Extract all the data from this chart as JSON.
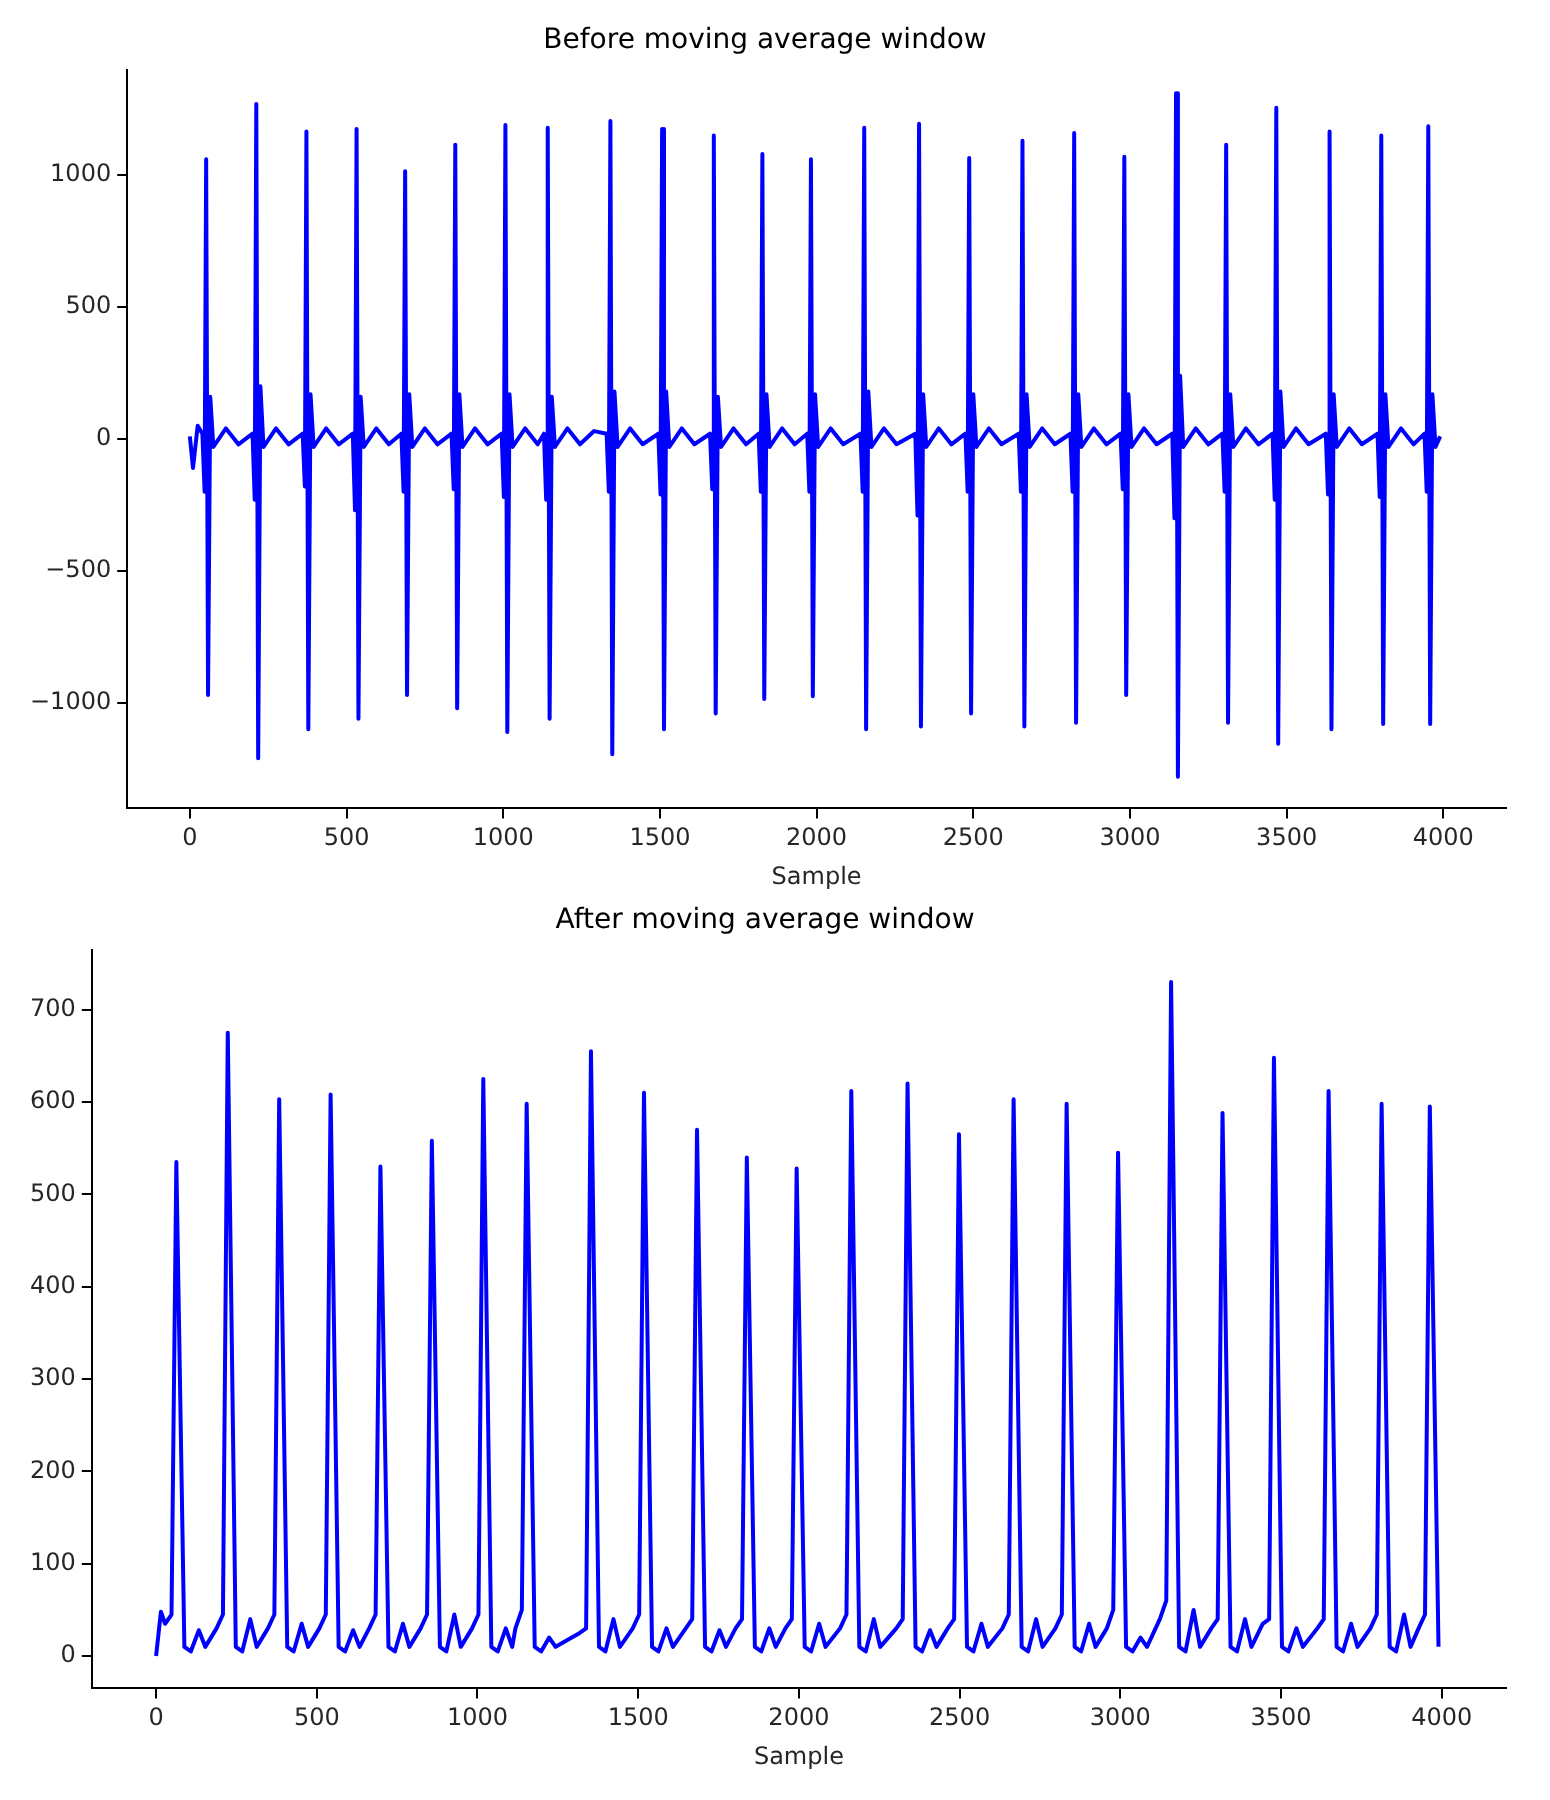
{
  "chart_data": [
    {
      "type": "line",
      "title": "Before moving average window",
      "xlabel": "Sample",
      "xlim": [
        -200,
        4200
      ],
      "xticks": [
        0,
        500,
        1000,
        1500,
        2000,
        2500,
        3000,
        3500,
        4000
      ],
      "ylim": [
        -1400,
        1400
      ],
      "yticks": [
        {
          "value": -1000,
          "label": "−1000"
        },
        {
          "value": -500,
          "label": "−500"
        },
        0,
        500,
        1000
      ],
      "grid": false,
      "legend": false,
      "marker": "none",
      "series": [
        {
          "color": "#0000ff",
          "x": [
            0,
            10,
            25,
            40,
            47,
            52,
            58,
            65,
            75,
            115,
            155,
            200,
            207,
            212,
            218,
            225,
            235,
            275,
            315,
            360,
            367,
            372,
            378,
            385,
            395,
            435,
            475,
            520,
            527,
            532,
            538,
            545,
            555,
            595,
            635,
            675,
            682,
            687,
            693,
            700,
            710,
            750,
            790,
            835,
            842,
            847,
            853,
            860,
            870,
            910,
            950,
            995,
            1002,
            1007,
            1013,
            1020,
            1030,
            1070,
            1110,
            1130,
            1137,
            1142,
            1148,
            1155,
            1165,
            1205,
            1245,
            1290,
            1330,
            1337,
            1342,
            1348,
            1355,
            1365,
            1405,
            1445,
            1495,
            1502,
            1507,
            1513,
            1520,
            1530,
            1570,
            1610,
            1660,
            1667,
            1672,
            1678,
            1685,
            1695,
            1735,
            1775,
            1815,
            1822,
            1827,
            1833,
            1840,
            1850,
            1890,
            1930,
            1970,
            1977,
            1982,
            1988,
            1995,
            2005,
            2045,
            2085,
            2140,
            2147,
            2152,
            2158,
            2165,
            2175,
            2215,
            2255,
            2315,
            2322,
            2327,
            2333,
            2340,
            2350,
            2390,
            2430,
            2475,
            2482,
            2487,
            2493,
            2500,
            2510,
            2550,
            2590,
            2645,
            2652,
            2657,
            2663,
            2670,
            2680,
            2720,
            2760,
            2810,
            2817,
            2822,
            2828,
            2835,
            2845,
            2885,
            2925,
            2970,
            2977,
            2982,
            2988,
            2995,
            3005,
            3045,
            3085,
            3135,
            3142,
            3147,
            3153,
            3160,
            3170,
            3210,
            3250,
            3295,
            3302,
            3307,
            3313,
            3320,
            3330,
            3370,
            3410,
            3455,
            3462,
            3467,
            3473,
            3480,
            3490,
            3530,
            3570,
            3625,
            3632,
            3637,
            3643,
            3650,
            3660,
            3700,
            3740,
            3790,
            3797,
            3802,
            3808,
            3815,
            3825,
            3865,
            3905,
            3940,
            3947,
            3952,
            3958,
            3965,
            3975,
            3990
          ],
          "values": [
            10,
            -110,
            50,
            20,
            -200,
            1060,
            -970,
            160,
            -30,
            40,
            -20,
            20,
            -230,
            1270,
            -1210,
            200,
            -30,
            40,
            -20,
            20,
            -180,
            1165,
            -1100,
            170,
            -30,
            40,
            -20,
            20,
            -270,
            1175,
            -1060,
            160,
            -30,
            40,
            -20,
            20,
            -200,
            1015,
            -970,
            170,
            -30,
            40,
            -20,
            20,
            -190,
            1115,
            -1020,
            170,
            -30,
            40,
            -20,
            20,
            -220,
            1190,
            -1110,
            170,
            -30,
            40,
            -20,
            20,
            -230,
            1180,
            -1060,
            160,
            -30,
            40,
            -20,
            30,
            20,
            -200,
            1205,
            -1195,
            180,
            -30,
            40,
            -20,
            20,
            -210,
            1175,
            -1100,
            180,
            -30,
            40,
            -20,
            20,
            -190,
            1150,
            -1040,
            160,
            -30,
            40,
            -20,
            20,
            -200,
            1080,
            -985,
            170,
            -30,
            40,
            -20,
            20,
            -200,
            1060,
            -975,
            170,
            -30,
            40,
            -20,
            20,
            -200,
            1180,
            -1100,
            180,
            -30,
            40,
            -20,
            20,
            -290,
            1195,
            -1090,
            170,
            -30,
            40,
            -20,
            20,
            -200,
            1065,
            -1040,
            170,
            -30,
            40,
            -20,
            20,
            -200,
            1130,
            -1090,
            170,
            -30,
            40,
            -20,
            20,
            -200,
            1160,
            -1075,
            170,
            -30,
            40,
            -20,
            20,
            -190,
            1070,
            -970,
            170,
            -30,
            40,
            -20,
            20,
            -300,
            1310,
            -1280,
            240,
            -30,
            40,
            -20,
            20,
            -200,
            1115,
            -1075,
            170,
            -30,
            40,
            -20,
            20,
            -230,
            1255,
            -1155,
            180,
            -30,
            40,
            -20,
            20,
            -210,
            1165,
            -1100,
            170,
            -30,
            40,
            -20,
            20,
            -220,
            1150,
            -1080,
            170,
            -30,
            40,
            -20,
            20,
            -200,
            1185,
            -1080,
            170,
            -30,
            10
          ]
        }
      ]
    },
    {
      "type": "line",
      "title": "After moving average window",
      "xlabel": "Sample",
      "xlim": [
        -200,
        4200
      ],
      "xticks": [
        0,
        500,
        1000,
        1500,
        2000,
        2500,
        3000,
        3500,
        4000
      ],
      "ylim": [
        -35,
        765
      ],
      "yticks": [
        0,
        100,
        200,
        300,
        400,
        500,
        600,
        700
      ],
      "grid": false,
      "legend": false,
      "marker": "none",
      "series": [
        {
          "color": "#0000ff",
          "x": [
            0,
            15,
            28,
            48,
            63,
            88,
            108,
            133,
            153,
            188,
            208,
            223,
            248,
            268,
            293,
            313,
            348,
            368,
            383,
            408,
            428,
            453,
            473,
            508,
            528,
            543,
            568,
            588,
            613,
            633,
            663,
            683,
            698,
            723,
            743,
            768,
            788,
            823,
            843,
            858,
            883,
            903,
            928,
            948,
            983,
            1003,
            1018,
            1043,
            1063,
            1088,
            1108,
            1118,
            1138,
            1153,
            1178,
            1198,
            1223,
            1243,
            1318,
            1338,
            1353,
            1378,
            1398,
            1423,
            1443,
            1483,
            1503,
            1518,
            1543,
            1563,
            1588,
            1608,
            1648,
            1668,
            1683,
            1708,
            1728,
            1753,
            1773,
            1803,
            1823,
            1838,
            1863,
            1883,
            1908,
            1928,
            1958,
            1978,
            1993,
            2018,
            2038,
            2063,
            2083,
            2128,
            2148,
            2163,
            2188,
            2208,
            2233,
            2253,
            2303,
            2323,
            2338,
            2363,
            2383,
            2408,
            2428,
            2463,
            2483,
            2498,
            2523,
            2543,
            2568,
            2588,
            2633,
            2653,
            2668,
            2693,
            2713,
            2738,
            2758,
            2798,
            2818,
            2833,
            2858,
            2878,
            2903,
            2923,
            2958,
            2978,
            2993,
            3018,
            3038,
            3063,
            3083,
            3123,
            3143,
            3158,
            3183,
            3203,
            3228,
            3248,
            3283,
            3303,
            3318,
            3343,
            3363,
            3388,
            3408,
            3443,
            3463,
            3478,
            3503,
            3523,
            3548,
            3568,
            3613,
            3633,
            3648,
            3673,
            3693,
            3718,
            3738,
            3778,
            3798,
            3813,
            3838,
            3858,
            3883,
            3903,
            3928,
            3948,
            3963,
            3990
          ],
          "values": [
            0,
            48,
            35,
            45,
            535,
            10,
            5,
            28,
            10,
            30,
            45,
            675,
            10,
            5,
            40,
            10,
            30,
            45,
            603,
            10,
            5,
            35,
            10,
            30,
            45,
            608,
            10,
            5,
            28,
            10,
            30,
            45,
            530,
            10,
            5,
            35,
            10,
            30,
            45,
            558,
            10,
            5,
            45,
            10,
            30,
            45,
            625,
            10,
            5,
            30,
            10,
            30,
            50,
            598,
            10,
            5,
            20,
            10,
            25,
            30,
            655,
            10,
            5,
            40,
            10,
            30,
            45,
            610,
            10,
            5,
            30,
            10,
            30,
            40,
            570,
            10,
            5,
            28,
            10,
            30,
            40,
            540,
            10,
            5,
            30,
            10,
            30,
            40,
            528,
            10,
            5,
            35,
            10,
            30,
            45,
            612,
            10,
            5,
            40,
            10,
            30,
            40,
            620,
            10,
            5,
            28,
            10,
            30,
            40,
            565,
            10,
            5,
            35,
            10,
            30,
            45,
            603,
            10,
            5,
            40,
            10,
            30,
            45,
            598,
            10,
            5,
            35,
            10,
            30,
            50,
            545,
            10,
            5,
            20,
            10,
            40,
            60,
            730,
            10,
            5,
            50,
            10,
            30,
            40,
            588,
            10,
            5,
            40,
            10,
            35,
            40,
            648,
            10,
            5,
            30,
            10,
            30,
            40,
            612,
            10,
            5,
            35,
            10,
            30,
            45,
            598,
            10,
            5,
            45,
            10,
            30,
            45,
            595,
            10
          ]
        }
      ]
    }
  ]
}
